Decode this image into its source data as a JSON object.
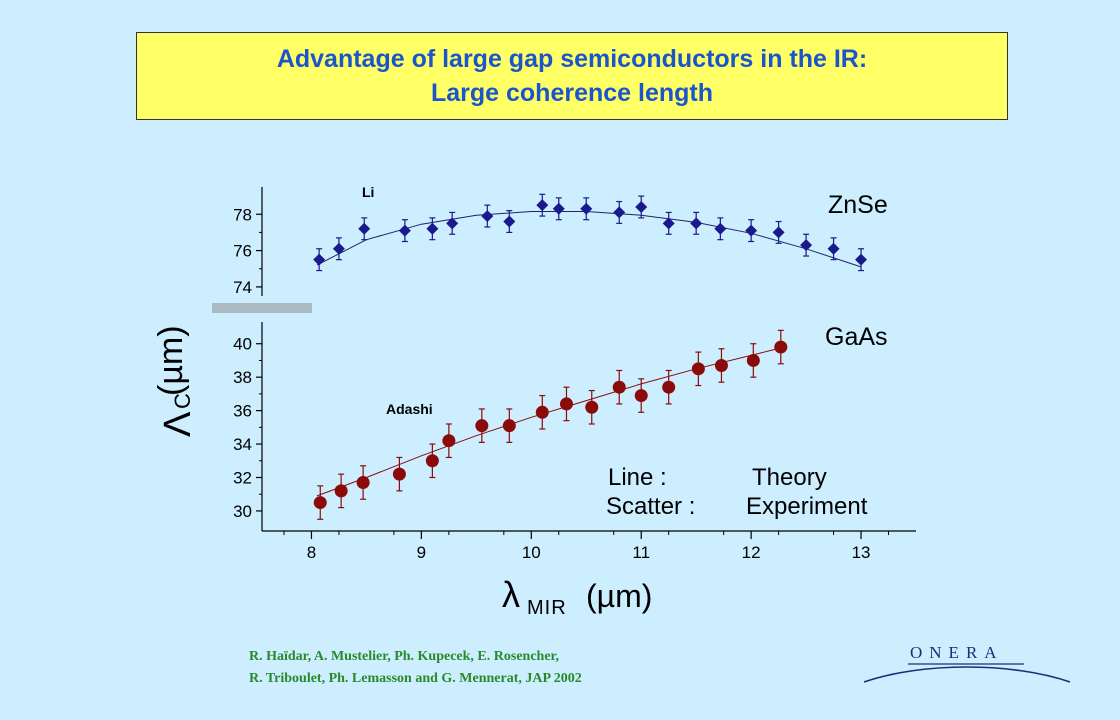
{
  "title": {
    "line1": "Advantage of large gap semiconductors in the IR:",
    "line2": "Large coherence length"
  },
  "chart_data": {
    "type": "scatter",
    "xlabel_symbol": "λ",
    "xlabel_sub": "MIR",
    "xlabel_unit": "(µm)",
    "ylabel_symbol": "Λ",
    "ylabel_sub": "C",
    "ylabel_unit": "(µm)",
    "x_ticks": [
      "8",
      "9",
      "10",
      "11",
      "12",
      "13"
    ],
    "xlim": [
      7.55,
      13.5
    ],
    "legend": {
      "line_key": "Line :",
      "line_value": "Theory",
      "scatter_key": "Scatter :",
      "scatter_value": "Experiment"
    },
    "panels": [
      {
        "name": "ZnSe",
        "annotation": "Li",
        "ylim": [
          73.5,
          79.5
        ],
        "y_ticks": [
          "74",
          "76",
          "78"
        ],
        "y_tick_values": [
          74,
          76,
          78
        ],
        "color": "#1a1a8c",
        "line_color": "#222266",
        "marker": "diamond",
        "theory": [
          [
            8.05,
            75.2
          ],
          [
            8.5,
            76.6
          ],
          [
            9.0,
            77.45
          ],
          [
            9.5,
            77.95
          ],
          [
            10.0,
            78.15
          ],
          [
            10.5,
            78.15
          ],
          [
            11.0,
            77.95
          ],
          [
            11.5,
            77.55
          ],
          [
            12.0,
            76.95
          ],
          [
            12.5,
            76.1
          ],
          [
            13.0,
            75.1
          ]
        ],
        "points": [
          {
            "x": 8.07,
            "y": 75.5,
            "err": 0.6
          },
          {
            "x": 8.25,
            "y": 76.1,
            "err": 0.6
          },
          {
            "x": 8.48,
            "y": 77.2,
            "err": 0.6
          },
          {
            "x": 8.85,
            "y": 77.1,
            "err": 0.6
          },
          {
            "x": 9.1,
            "y": 77.2,
            "err": 0.6
          },
          {
            "x": 9.28,
            "y": 77.5,
            "err": 0.6
          },
          {
            "x": 9.6,
            "y": 77.9,
            "err": 0.6
          },
          {
            "x": 9.8,
            "y": 77.6,
            "err": 0.6
          },
          {
            "x": 10.1,
            "y": 78.5,
            "err": 0.6
          },
          {
            "x": 10.25,
            "y": 78.3,
            "err": 0.6
          },
          {
            "x": 10.5,
            "y": 78.3,
            "err": 0.6
          },
          {
            "x": 10.8,
            "y": 78.1,
            "err": 0.6
          },
          {
            "x": 11.0,
            "y": 78.4,
            "err": 0.6
          },
          {
            "x": 11.25,
            "y": 77.5,
            "err": 0.6
          },
          {
            "x": 11.5,
            "y": 77.5,
            "err": 0.6
          },
          {
            "x": 11.72,
            "y": 77.2,
            "err": 0.6
          },
          {
            "x": 12.0,
            "y": 77.1,
            "err": 0.6
          },
          {
            "x": 12.25,
            "y": 77.0,
            "err": 0.6
          },
          {
            "x": 12.5,
            "y": 76.3,
            "err": 0.6
          },
          {
            "x": 12.75,
            "y": 76.1,
            "err": 0.6
          },
          {
            "x": 13.0,
            "y": 75.5,
            "err": 0.6
          }
        ]
      },
      {
        "name": "GaAs",
        "annotation": "Adashi",
        "ylim": [
          28.8,
          41.3
        ],
        "y_ticks": [
          "30",
          "32",
          "34",
          "36",
          "38",
          "40"
        ],
        "y_tick_values": [
          30,
          32,
          34,
          36,
          38,
          40
        ],
        "color": "#8b0a0a",
        "line_color": "#8b0a0a",
        "marker": "circle",
        "theory": [
          [
            8.05,
            30.9
          ],
          [
            8.5,
            32.0
          ],
          [
            9.0,
            33.3
          ],
          [
            9.5,
            34.5
          ],
          [
            10.0,
            35.6
          ],
          [
            10.5,
            36.6
          ],
          [
            11.0,
            37.6
          ],
          [
            11.5,
            38.5
          ],
          [
            12.0,
            39.3
          ],
          [
            12.3,
            39.8
          ]
        ],
        "points": [
          {
            "x": 8.08,
            "y": 30.5,
            "err": 1.0
          },
          {
            "x": 8.27,
            "y": 31.2,
            "err": 1.0
          },
          {
            "x": 8.47,
            "y": 31.7,
            "err": 1.0
          },
          {
            "x": 8.8,
            "y": 32.2,
            "err": 1.0
          },
          {
            "x": 9.1,
            "y": 33.0,
            "err": 1.0
          },
          {
            "x": 9.25,
            "y": 34.2,
            "err": 1.0
          },
          {
            "x": 9.55,
            "y": 35.1,
            "err": 1.0
          },
          {
            "x": 9.8,
            "y": 35.1,
            "err": 1.0
          },
          {
            "x": 10.1,
            "y": 35.9,
            "err": 1.0
          },
          {
            "x": 10.32,
            "y": 36.4,
            "err": 1.0
          },
          {
            "x": 10.55,
            "y": 36.2,
            "err": 1.0
          },
          {
            "x": 10.8,
            "y": 37.4,
            "err": 1.0
          },
          {
            "x": 11.0,
            "y": 36.9,
            "err": 1.0
          },
          {
            "x": 11.25,
            "y": 37.4,
            "err": 1.0
          },
          {
            "x": 11.52,
            "y": 38.5,
            "err": 1.0
          },
          {
            "x": 11.73,
            "y": 38.7,
            "err": 1.0
          },
          {
            "x": 12.02,
            "y": 39.0,
            "err": 1.0
          },
          {
            "x": 12.27,
            "y": 39.8,
            "err": 1.0
          }
        ]
      }
    ]
  },
  "reference": {
    "line1": "R. Haïdar, A. Mustelier, Ph. Kupecek, E. Rosencher,",
    "line2": "R. Triboulet, Ph. Lemasson and G. Mennerat, JAP 2002"
  },
  "logo": {
    "text": "ONERA"
  }
}
